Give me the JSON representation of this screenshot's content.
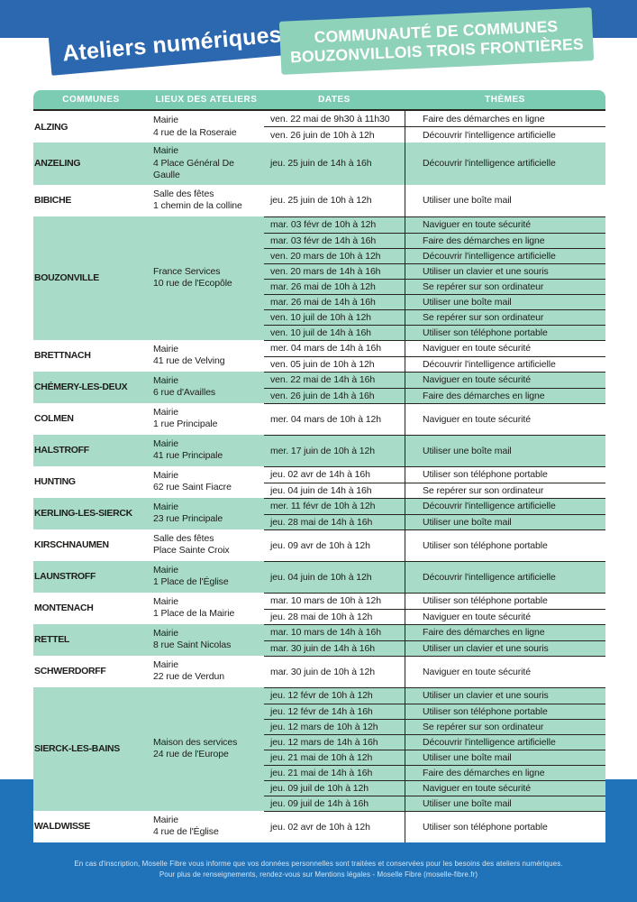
{
  "header": {
    "title": "Ateliers numériques",
    "org_line1": "COMMUNAUTÉ DE COMMUNES",
    "org_line2": "BOUZONVILLOIS TROIS FRONTIÈRES"
  },
  "colors": {
    "blue": "#2b68b0",
    "blue_bottom": "#2173b9",
    "teal_ribbon": "#8fd2ba",
    "teal_header": "#7cccb3",
    "teal_row": "#a9dcc8",
    "ink": "#1d1d1b",
    "line": "#26261f"
  },
  "table": {
    "columns": [
      "COMMUNES",
      "LIEUX DES ATELIERS",
      "DATES",
      "THÈMES"
    ],
    "rows": [
      {
        "commune": "ALZING",
        "lieu": [
          "Mairie",
          "4 rue de la Roseraie"
        ],
        "sessions": [
          {
            "date": "ven. 22 mai de 9h30 à 11h30",
            "theme": "Faire des démarches en ligne"
          },
          {
            "date": "ven. 26 juin de 10h à 12h",
            "theme": "Découvrir l'intelligence artificielle"
          }
        ]
      },
      {
        "commune": "ANZELING",
        "lieu": [
          "Mairie",
          "4 Place Général De Gaulle"
        ],
        "sessions": [
          {
            "date": "jeu. 25 juin de 14h à 16h",
            "theme": "Découvrir l'intelligence artificielle"
          }
        ]
      },
      {
        "commune": "BIBICHE",
        "lieu": [
          "Salle des fêtes",
          "1 chemin de la colline"
        ],
        "sessions": [
          {
            "date": "jeu. 25 juin de 10h à 12h",
            "theme": "Utiliser une boîte mail"
          }
        ]
      },
      {
        "commune": "BOUZONVILLE",
        "lieu": [
          "France Services",
          "10 rue de l'Ecopôle"
        ],
        "sessions": [
          {
            "date": "mar. 03 févr de 10h à 12h",
            "theme": "Naviguer en toute sécurité"
          },
          {
            "date": "mar. 03 févr de 14h à 16h",
            "theme": "Faire des démarches en ligne"
          },
          {
            "date": "ven. 20 mars de 10h à 12h",
            "theme": "Découvrir l'intelligence artificielle"
          },
          {
            "date": "ven. 20 mars de 14h à 16h",
            "theme": "Utiliser un clavier et une souris"
          },
          {
            "date": "mar. 26 mai de 10h à 12h",
            "theme": "Se repérer sur son ordinateur"
          },
          {
            "date": "mar. 26 mai de 14h à 16h",
            "theme": "Utiliser une boîte mail"
          },
          {
            "date": "ven. 10 juil de 10h à 12h",
            "theme": "Se repérer sur son ordinateur"
          },
          {
            "date": "ven. 10 juil de 14h à 16h",
            "theme": "Utiliser son téléphone portable"
          }
        ]
      },
      {
        "commune": "BRETTNACH",
        "lieu": [
          "Mairie",
          "41 rue de Velving"
        ],
        "sessions": [
          {
            "date": "mer. 04 mars de 14h à 16h",
            "theme": "Naviguer en toute sécurité"
          },
          {
            "date": "ven. 05 juin de 10h à 12h",
            "theme": "Découvrir l'intelligence artificielle"
          }
        ]
      },
      {
        "commune": "CHÉMERY-LES-DEUX",
        "lieu": [
          "Mairie",
          "6 rue d'Availles"
        ],
        "sessions": [
          {
            "date": "ven. 22 mai de 14h à 16h",
            "theme": "Naviguer en toute sécurité"
          },
          {
            "date": "ven. 26 juin de 14h à 16h",
            "theme": "Faire des démarches en ligne"
          }
        ]
      },
      {
        "commune": "COLMEN",
        "lieu": [
          "Mairie",
          "1 rue Principale"
        ],
        "sessions": [
          {
            "date": "mer. 04 mars de 10h à 12h",
            "theme": "Naviguer en toute sécurité"
          }
        ]
      },
      {
        "commune": "HALSTROFF",
        "lieu": [
          "Mairie",
          "41 rue Principale"
        ],
        "sessions": [
          {
            "date": "mer. 17 juin de 10h à 12h",
            "theme": "Utiliser une boîte mail"
          }
        ]
      },
      {
        "commune": "HUNTING",
        "lieu": [
          "Mairie",
          "62 rue Saint Fiacre"
        ],
        "sessions": [
          {
            "date": "jeu. 02 avr de 14h à 16h",
            "theme": "Utiliser son téléphone portable"
          },
          {
            "date": "jeu. 04 juin de 14h à 16h",
            "theme": "Se repérer sur son ordinateur"
          }
        ]
      },
      {
        "commune": "KERLING-LES-SIERCK",
        "lieu": [
          "Mairie",
          "23 rue Principale"
        ],
        "sessions": [
          {
            "date": "mer. 11 févr de 10h à 12h",
            "theme": "Découvrir l'intelligence artificielle"
          },
          {
            "date": "jeu. 28 mai de 14h à 16h",
            "theme": "Utiliser une boîte mail"
          }
        ]
      },
      {
        "commune": "KIRSCHNAUMEN",
        "lieu": [
          "Salle des fêtes",
          "Place Sainte Croix"
        ],
        "sessions": [
          {
            "date": "jeu. 09 avr de 10h à 12h",
            "theme": "Utiliser son téléphone portable"
          }
        ]
      },
      {
        "commune": "LAUNSTROFF",
        "lieu": [
          "Mairie",
          "1 Place de l'Église"
        ],
        "sessions": [
          {
            "date": "jeu. 04 juin de 10h à 12h",
            "theme": "Découvrir l'intelligence artificielle"
          }
        ]
      },
      {
        "commune": "MONTENACH",
        "lieu": [
          "Mairie",
          "1 Place de la Mairie"
        ],
        "sessions": [
          {
            "date": "mar. 10 mars de 10h à 12h",
            "theme": "Utiliser son téléphone portable"
          },
          {
            "date": "jeu. 28 mai de 10h à 12h",
            "theme": "Naviguer en toute sécurité"
          }
        ]
      },
      {
        "commune": "RETTEL",
        "lieu": [
          "Mairie",
          "8 rue Saint Nicolas"
        ],
        "sessions": [
          {
            "date": "mar. 10 mars de 14h à 16h",
            "theme": "Faire des démarches en ligne"
          },
          {
            "date": "mar. 30 juin de 14h à 16h",
            "theme": "Utiliser un clavier et une souris"
          }
        ]
      },
      {
        "commune": "SCHWERDORFF",
        "lieu": [
          "Mairie",
          "22 rue de Verdun"
        ],
        "sessions": [
          {
            "date": "mar. 30 juin de 10h à 12h",
            "theme": "Naviguer en toute sécurité"
          }
        ]
      },
      {
        "commune": "SIERCK-LES-BAINS",
        "lieu": [
          "Maison des services",
          "24 rue de l'Europe"
        ],
        "sessions": [
          {
            "date": "jeu. 12 févr de 10h à 12h",
            "theme": "Utiliser un clavier et une souris"
          },
          {
            "date": "jeu. 12 févr de 14h à 16h",
            "theme": "Utiliser son téléphone portable"
          },
          {
            "date": "jeu. 12 mars de 10h à 12h",
            "theme": "Se repérer sur son ordinateur"
          },
          {
            "date": "jeu. 12 mars de 14h à 16h",
            "theme": "Découvrir l'intelligence artificielle"
          },
          {
            "date": "jeu. 21 mai de 10h à 12h",
            "theme": "Utiliser une boîte mail"
          },
          {
            "date": "jeu. 21 mai de 14h à 16h",
            "theme": "Faire des démarches en ligne"
          },
          {
            "date": "jeu. 09 juil de 10h à 12h",
            "theme": "Naviguer en toute sécurité"
          },
          {
            "date": "jeu. 09 juil de 14h à 16h",
            "theme": "Utiliser une boîte mail"
          }
        ]
      },
      {
        "commune": "WALDWISSE",
        "lieu": [
          "Mairie",
          "4 rue de l'Église"
        ],
        "sessions": [
          {
            "date": "jeu. 02 avr de 10h à 12h",
            "theme": "Utiliser son téléphone portable"
          }
        ]
      }
    ]
  },
  "footer": {
    "line1": "En cas d'inscription, Moselle Fibre vous informe que vos données personnelles sont traitées et conservées pour les besoins des ateliers numériques.",
    "line2": "Pour plus de renseignements, rendez-vous sur Mentions légales - Moselle Fibre (moselle-fibre.fr)"
  }
}
